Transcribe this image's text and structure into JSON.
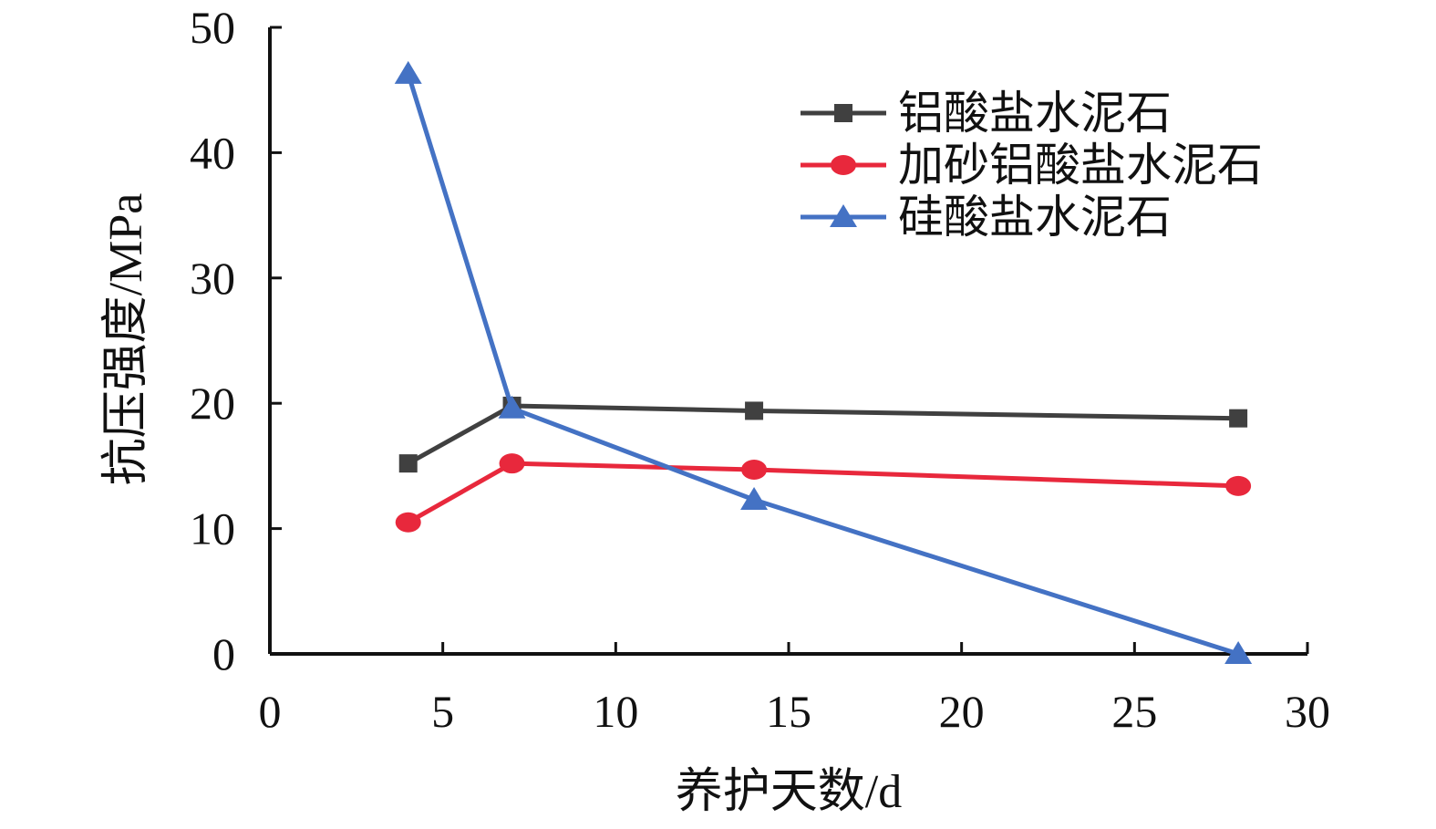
{
  "chart_data": {
    "type": "line",
    "xlabel": "养护天数/d",
    "ylabel": "抗压强度/MPa",
    "xlim": [
      0,
      30
    ],
    "ylim": [
      0,
      50
    ],
    "xticks": [
      0,
      5,
      10,
      15,
      20,
      25,
      30
    ],
    "yticks": [
      0,
      10,
      20,
      30,
      40,
      50
    ],
    "grid": false,
    "legend_position": "top-right",
    "x": [
      4,
      7,
      14,
      28
    ],
    "series": [
      {
        "name": "铝酸盐水泥石",
        "marker": "square",
        "color": "#404040",
        "values": [
          15.2,
          19.8,
          19.4,
          18.8
        ]
      },
      {
        "name": "加砂铝酸盐水泥石",
        "marker": "circle",
        "color": "#e8283c",
        "values": [
          10.5,
          15.2,
          14.7,
          13.4
        ]
      },
      {
        "name": "硅酸盐水泥石",
        "marker": "triangle",
        "color": "#4472c4",
        "values": [
          46.3,
          19.6,
          12.3,
          0
        ]
      }
    ]
  }
}
